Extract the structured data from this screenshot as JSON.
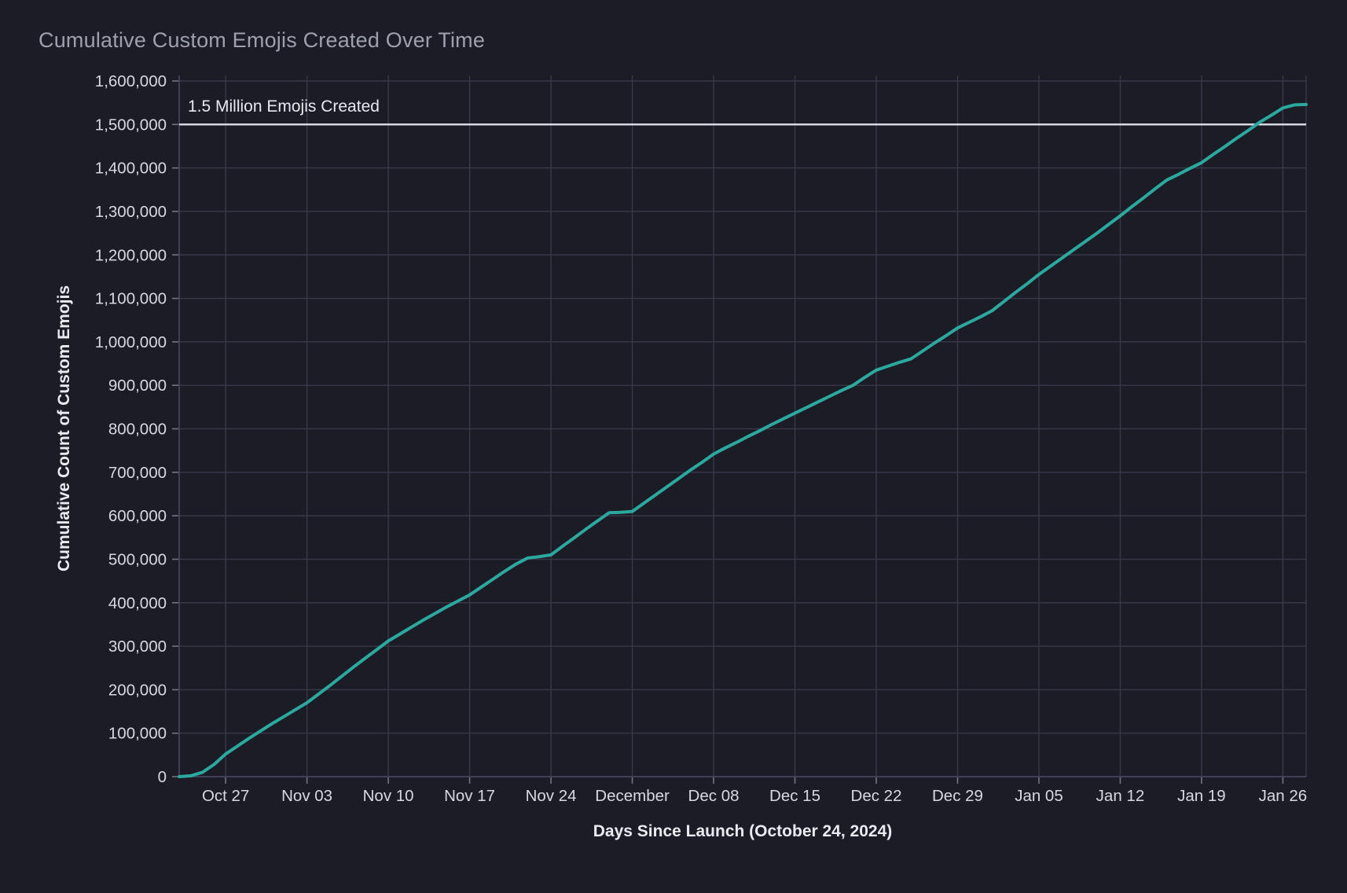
{
  "chart_data": {
    "type": "line",
    "title": "Cumulative Custom Emojis Created Over Time",
    "xlabel": "Days Since Launch (October 24, 2024)",
    "ylabel": "Cumulative Count of Custom Emojis",
    "grid": true,
    "legend": false,
    "x_axis": {
      "xlim_days": [
        -1,
        96
      ],
      "tick_days": [
        3,
        10,
        17,
        24,
        31,
        38,
        45,
        52,
        59,
        66,
        73,
        80,
        87,
        94
      ],
      "tick_labels": [
        "Oct 27",
        "Nov 03",
        "Nov 10",
        "Nov 17",
        "Nov 24",
        "December",
        "Dec 08",
        "Dec 15",
        "Dec 22",
        "Dec 29",
        "Jan 05",
        "Jan 12",
        "Jan 19",
        "Jan 26"
      ]
    },
    "y_axis": {
      "ylim": [
        0,
        1613000
      ],
      "tick_values": [
        0,
        100000,
        200000,
        300000,
        400000,
        500000,
        600000,
        700000,
        800000,
        900000,
        1000000,
        1100000,
        1200000,
        1300000,
        1400000,
        1500000,
        1600000
      ],
      "tick_labels": [
        "0",
        "100,000",
        "200,000",
        "300,000",
        "400,000",
        "500,000",
        "600,000",
        "700,000",
        "800,000",
        "900,000",
        "1,000,000",
        "1,100,000",
        "1,200,000",
        "1,300,000",
        "1,400,000",
        "1,500,000",
        "1,600,000"
      ]
    },
    "reference_line": {
      "value": 1500000,
      "label": "1.5 Million Emojis Created",
      "color": "#dfe0ea"
    },
    "series": [
      {
        "name": "Cumulative Custom Emojis",
        "color": "#2ca99e",
        "points_day_value": [
          [
            -1,
            0
          ],
          [
            0,
            2000
          ],
          [
            1,
            10000
          ],
          [
            2,
            28000
          ],
          [
            3,
            52000
          ],
          [
            4,
            70000
          ],
          [
            5,
            88000
          ],
          [
            6,
            105000
          ],
          [
            7,
            122000
          ],
          [
            8,
            138000
          ],
          [
            9,
            154000
          ],
          [
            10,
            170000
          ],
          [
            11,
            190000
          ],
          [
            12,
            210000
          ],
          [
            13,
            231000
          ],
          [
            14,
            252000
          ],
          [
            15,
            272000
          ],
          [
            16,
            292000
          ],
          [
            17,
            312000
          ],
          [
            18,
            328000
          ],
          [
            19,
            344000
          ],
          [
            20,
            360000
          ],
          [
            21,
            375000
          ],
          [
            22,
            390000
          ],
          [
            23,
            404000
          ],
          [
            24,
            418000
          ],
          [
            25,
            436000
          ],
          [
            26,
            454000
          ],
          [
            27,
            472000
          ],
          [
            28,
            489000
          ],
          [
            29,
            503000
          ],
          [
            30,
            506000
          ],
          [
            31,
            510000
          ],
          [
            32,
            530000
          ],
          [
            33,
            549000
          ],
          [
            34,
            569000
          ],
          [
            35,
            588000
          ],
          [
            36,
            607000
          ],
          [
            37,
            608000
          ],
          [
            38,
            610000
          ],
          [
            39,
            629000
          ],
          [
            40,
            648000
          ],
          [
            41,
            667000
          ],
          [
            42,
            686000
          ],
          [
            43,
            705000
          ],
          [
            44,
            723000
          ],
          [
            45,
            742000
          ],
          [
            46,
            756000
          ],
          [
            47,
            769000
          ],
          [
            48,
            783000
          ],
          [
            49,
            796000
          ],
          [
            50,
            810000
          ],
          [
            51,
            823000
          ],
          [
            52,
            836000
          ],
          [
            53,
            849000
          ],
          [
            54,
            862000
          ],
          [
            55,
            875000
          ],
          [
            56,
            888000
          ],
          [
            57,
            900000
          ],
          [
            58,
            918000
          ],
          [
            59,
            935000
          ],
          [
            60,
            944000
          ],
          [
            61,
            953000
          ],
          [
            62,
            961000
          ],
          [
            63,
            979000
          ],
          [
            64,
            997000
          ],
          [
            65,
            1014000
          ],
          [
            66,
            1032000
          ],
          [
            67,
            1045000
          ],
          [
            68,
            1058000
          ],
          [
            69,
            1072000
          ],
          [
            70,
            1093000
          ],
          [
            71,
            1114000
          ],
          [
            72,
            1134000
          ],
          [
            73,
            1155000
          ],
          [
            74,
            1174000
          ],
          [
            75,
            1193000
          ],
          [
            76,
            1212000
          ],
          [
            77,
            1231000
          ],
          [
            78,
            1250000
          ],
          [
            79,
            1270000
          ],
          [
            80,
            1290000
          ],
          [
            81,
            1311000
          ],
          [
            82,
            1331000
          ],
          [
            83,
            1352000
          ],
          [
            84,
            1372000
          ],
          [
            85,
            1385000
          ],
          [
            86,
            1399000
          ],
          [
            87,
            1412000
          ],
          [
            88,
            1431000
          ],
          [
            89,
            1449000
          ],
          [
            90,
            1468000
          ],
          [
            91,
            1486000
          ],
          [
            92,
            1505000
          ],
          [
            93,
            1521000
          ],
          [
            94,
            1538000
          ],
          [
            95,
            1545000
          ],
          [
            96,
            1546000
          ]
        ]
      }
    ]
  },
  "colors": {
    "background": "#1b1c25",
    "grid": "#373949",
    "spine": "#474960",
    "tick_mark": "#71737f",
    "title": "#9da0ae",
    "tick_label": "#d7d8e1",
    "axis_label": "#eaebf1",
    "annotation": "#e8e9f0",
    "line": "#2ca99e",
    "reference": "#dfe0ea"
  }
}
